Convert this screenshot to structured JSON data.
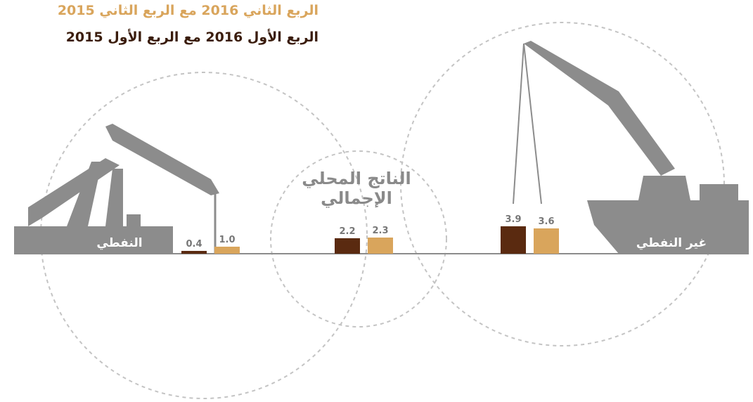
{
  "chart_data": {
    "type": "bar",
    "categories": [
      "النفطي",
      "الناتج المحلي الإجمالي",
      "غير النفطي"
    ],
    "series": [
      {
        "name": "الربع الأول 2016 مع الربع الأول 2015",
        "color": "#5a2a10",
        "values": [
          0.4,
          2.2,
          3.9
        ],
        "value_labels": [
          "0.4",
          "2.2",
          "3.9"
        ]
      },
      {
        "name": "الربع الثاني 2016 مع الربع الثاني 2015",
        "color": "#d9a55c",
        "values": [
          1.0,
          2.3,
          3.6
        ],
        "value_labels": [
          "1.0",
          "2.3",
          "3.6"
        ]
      }
    ]
  }
}
